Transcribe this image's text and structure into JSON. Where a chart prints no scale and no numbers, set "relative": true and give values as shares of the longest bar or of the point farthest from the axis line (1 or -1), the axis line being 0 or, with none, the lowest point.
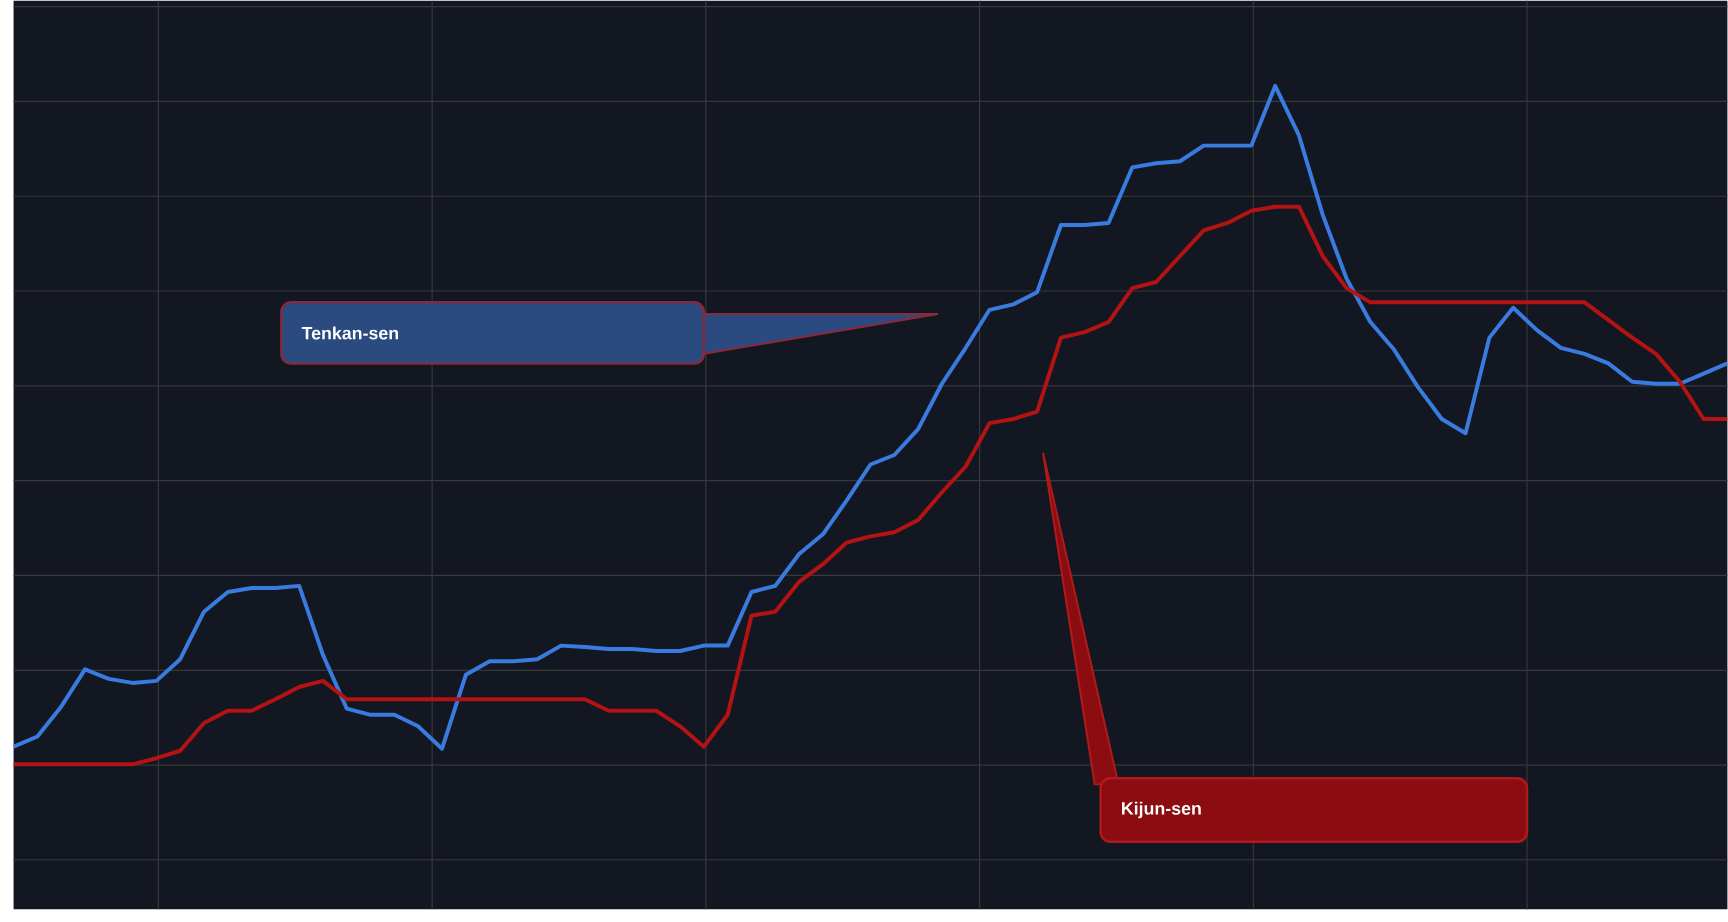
{
  "chart_data": {
    "type": "line",
    "relative": true,
    "grid": true,
    "annotations": [
      "Tenkan-sen",
      "Kijun-sen"
    ],
    "categories": [
      null,
      null,
      null,
      null,
      null,
      null,
      null,
      null,
      null,
      null,
      null,
      null,
      null,
      null,
      null,
      null,
      null,
      null,
      null,
      null,
      null,
      null,
      null,
      null,
      null,
      null,
      null,
      null,
      null,
      null,
      null,
      null,
      null,
      null,
      null,
      null,
      null,
      null,
      null,
      null,
      null,
      null,
      null,
      null,
      null,
      null,
      null,
      null,
      null,
      null,
      null,
      null,
      null,
      null,
      null,
      null,
      null,
      null,
      null,
      null,
      null,
      null,
      null,
      null,
      null,
      null,
      null,
      null,
      null,
      null,
      null,
      null,
      null
    ],
    "series": [
      {
        "color": "#3a7be0",
        "values": [
          0.026,
          0.041,
          0.085,
          0.14,
          0.126,
          0.12,
          0.123,
          0.155,
          0.225,
          0.254,
          0.26,
          0.26,
          0.263,
          0.161,
          0.082,
          0.073,
          0.073,
          0.056,
          0.023,
          0.132,
          0.152,
          0.152,
          0.155,
          0.175,
          0.173,
          0.17,
          0.17,
          0.167,
          0.167,
          0.175,
          0.175,
          0.254,
          0.263,
          0.31,
          0.339,
          0.389,
          0.442,
          0.456,
          0.494,
          0.561,
          0.614,
          0.67,
          0.678,
          0.696,
          0.795,
          0.795,
          0.798,
          0.88,
          0.886,
          0.889,
          0.912,
          0.912,
          0.912,
          1.0,
          0.927,
          0.81,
          0.716,
          0.652,
          0.611,
          0.556,
          0.509,
          0.488,
          0.629,
          0.673,
          0.64,
          0.614,
          0.605,
          0.591,
          0.564,
          0.561,
          0.561,
          0.576,
          0.591
        ]
      },
      {
        "color": "#b31312",
        "values": [
          0,
          0,
          0,
          0,
          0,
          0,
          0.009,
          0.02,
          0.061,
          0.079,
          0.079,
          0.096,
          0.114,
          0.123,
          0.096,
          0.096,
          0.096,
          0.096,
          0.096,
          0.096,
          0.096,
          0.096,
          0.096,
          0.096,
          0.096,
          0.079,
          0.079,
          0.079,
          0.056,
          0.026,
          0.073,
          0.219,
          0.225,
          0.269,
          0.295,
          0.327,
          0.336,
          0.342,
          0.36,
          0.401,
          0.439,
          0.503,
          0.509,
          0.52,
          0.629,
          0.637,
          0.652,
          0.702,
          0.711,
          0.749,
          0.787,
          0.798,
          0.816,
          0.822,
          0.822,
          0.749,
          0.702,
          0.681,
          0.681,
          0.681,
          0.681,
          0.681,
          0.681,
          0.681,
          0.681,
          0.681,
          0.681,
          0.655,
          0.629,
          0.605,
          0.564,
          0.509,
          0.509
        ]
      }
    ]
  }
}
